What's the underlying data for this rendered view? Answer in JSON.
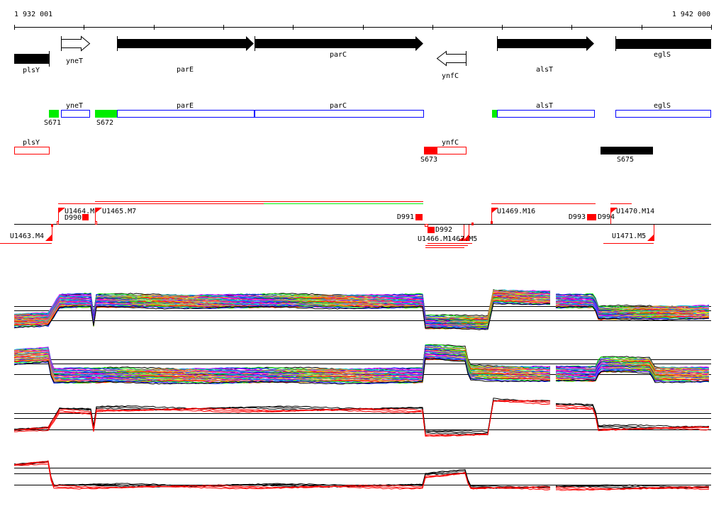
{
  "coordinates": {
    "start": "1 932 001",
    "end": "1 942 000"
  },
  "genes": {
    "plsY": "plsY",
    "yneT": "yneT",
    "parE": "parE",
    "parC": "parC",
    "ynfC": "ynfC",
    "alsT": "alsT",
    "eglS": "eglS"
  },
  "segments": {
    "s671": "S671",
    "s672": "S672",
    "s673": "S673",
    "s675": "S675"
  },
  "units": {
    "u1463": "U1463.M4",
    "u1464": "U1464.M",
    "u1465": "U1465.M7",
    "u1469": "U1469.M16",
    "u1470": "U1470.M14",
    "u1471": "U1471.M5",
    "u_overlap": "U1466.M1467.M5",
    "d990": "D990",
    "d991": "D991",
    "d992": "D992",
    "d993": "D993",
    "d994": "D994"
  },
  "colors": {
    "blue": "#0000ff",
    "green": "#00ee00",
    "red": "#ff0000",
    "black": "#000000"
  }
}
